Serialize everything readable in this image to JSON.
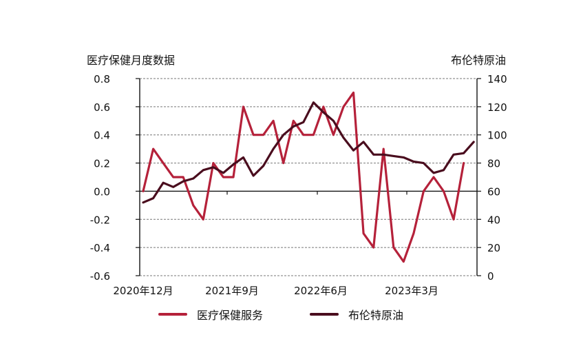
{
  "chart_data": {
    "type": "line",
    "title": "",
    "left_axis_title": "医疗保健月度数据",
    "right_axis_title": "布伦特原油",
    "ylabel": "医疗保健月度数据",
    "y2label": "布伦特原油",
    "ylim": [
      -0.6,
      0.8
    ],
    "y2lim": [
      0,
      140
    ],
    "yticks": [
      "0.8",
      "0.6",
      "0.4",
      "0.2",
      "0.0",
      "-0.2",
      "-0.4",
      "-0.6"
    ],
    "y2ticks": [
      "140",
      "120",
      "100",
      "80",
      "60",
      "40",
      "20",
      "0"
    ],
    "xtick_labels": [
      "2020年12月",
      "2021年9月",
      "2022年6月",
      "2023年3月"
    ],
    "grid": true,
    "legend_position": "bottom",
    "series": [
      {
        "name": "医疗保健服务",
        "axis": "left",
        "color": "#b5213a",
        "values": [
          0.0,
          0.3,
          0.2,
          0.1,
          0.1,
          -0.1,
          -0.2,
          0.2,
          0.1,
          0.1,
          0.6,
          0.4,
          0.4,
          0.5,
          0.2,
          0.5,
          0.4,
          0.4,
          0.6,
          0.4,
          0.6,
          0.7,
          -0.3,
          -0.4,
          0.3,
          -0.4,
          -0.5,
          -0.3,
          0.0,
          0.1,
          0.0,
          -0.2,
          0.2
        ]
      },
      {
        "name": "布伦特原油",
        "axis": "right",
        "color": "#4a0d1e",
        "values": [
          52,
          55,
          66,
          63,
          67,
          69,
          75,
          77,
          73,
          79,
          84,
          71,
          78,
          90,
          100,
          106,
          109,
          123,
          116,
          110,
          98,
          89,
          95,
          86,
          86,
          85,
          84,
          81,
          80,
          73,
          75,
          86,
          87,
          95
        ]
      }
    ]
  },
  "legend": {
    "items": [
      {
        "label": "医疗保健服务",
        "color": "#b5213a"
      },
      {
        "label": "布伦特原油",
        "color": "#4a0d1e"
      }
    ]
  }
}
